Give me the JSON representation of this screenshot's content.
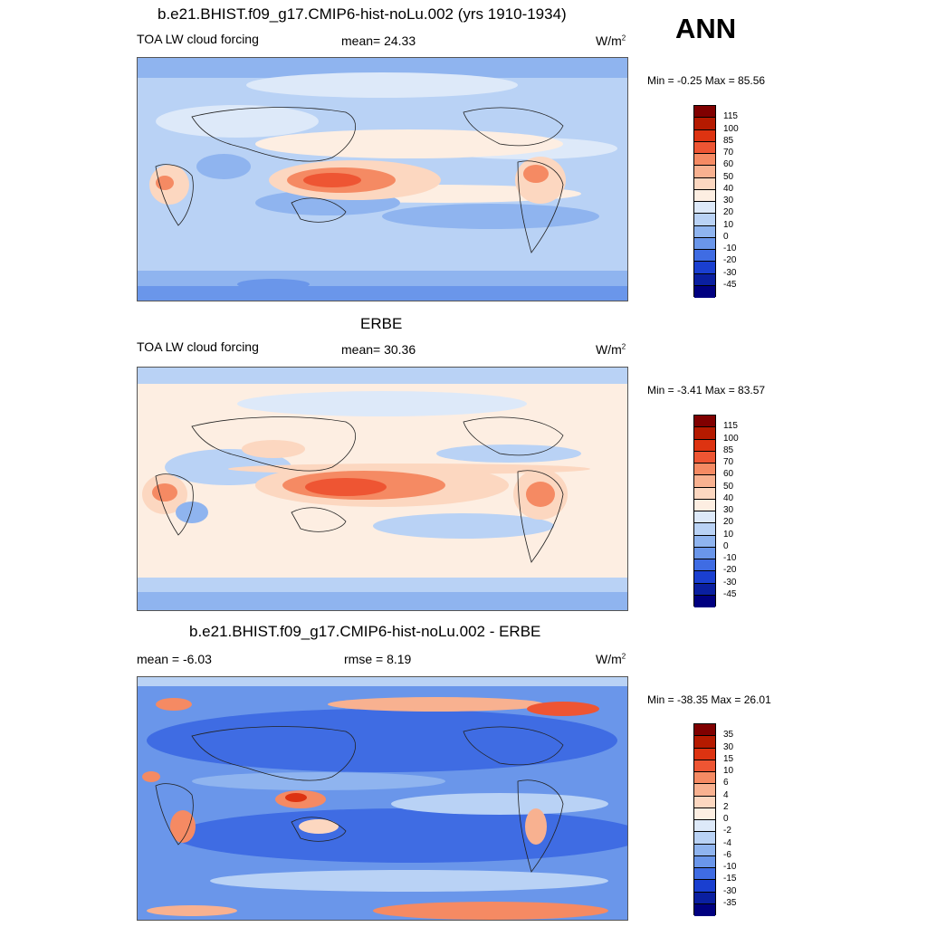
{
  "season": "ANN",
  "panels": [
    {
      "title": "b.e21.BHIST.f09_g17.CMIP6-hist-noLu.002 (yrs 1910-1934)",
      "left_label": "TOA LW cloud forcing",
      "center_label": "mean=  24.33",
      "units": "W/m",
      "units_sup": "2",
      "minmax": "Min =  -0.25 Max =  85.56",
      "colorbar": {
        "labels": [
          "115",
          "100",
          "85",
          "70",
          "60",
          "50",
          "40",
          "30",
          "20",
          "10",
          "0",
          "-10",
          "-20",
          "-30",
          "-45"
        ],
        "colors": [
          "#800000",
          "#b51a00",
          "#dd3311",
          "#ee5533",
          "#f58a63",
          "#f8b190",
          "#fcd7c0",
          "#fdeee2",
          "#dde9f9",
          "#b9d2f5",
          "#8fb4ef",
          "#6a96ea",
          "#3f6ce3",
          "#1a3fd0",
          "#0a1fa0",
          "#000080"
        ]
      }
    },
    {
      "title": "ERBE",
      "left_label": "TOA LW cloud forcing",
      "center_label": "mean=  30.36",
      "units": "W/m",
      "units_sup": "2",
      "minmax": "Min =  -3.41 Max =  83.57",
      "colorbar": {
        "labels": [
          "115",
          "100",
          "85",
          "70",
          "60",
          "50",
          "40",
          "30",
          "20",
          "10",
          "0",
          "-10",
          "-20",
          "-30",
          "-45"
        ],
        "colors": [
          "#800000",
          "#b51a00",
          "#dd3311",
          "#ee5533",
          "#f58a63",
          "#f8b190",
          "#fcd7c0",
          "#fdeee2",
          "#dde9f9",
          "#b9d2f5",
          "#8fb4ef",
          "#6a96ea",
          "#3f6ce3",
          "#1a3fd0",
          "#0a1fa0",
          "#000080"
        ]
      }
    },
    {
      "title": "b.e21.BHIST.f09_g17.CMIP6-hist-noLu.002 - ERBE",
      "left_label": "mean =  -6.03",
      "center_label": "rmse =   8.19",
      "units": "W/m",
      "units_sup": "2",
      "minmax": "Min = -38.35 Max =  26.01",
      "colorbar": {
        "labels": [
          "35",
          "30",
          "15",
          "10",
          "6",
          "4",
          "2",
          "0",
          "-2",
          "-4",
          "-6",
          "-10",
          "-15",
          "-30",
          "-35"
        ],
        "colors": [
          "#800000",
          "#b51a00",
          "#dd3311",
          "#ee5533",
          "#f58a63",
          "#f8b190",
          "#fcd7c0",
          "#fdeee2",
          "#dde9f9",
          "#b9d2f5",
          "#8fb4ef",
          "#6a96ea",
          "#3f6ce3",
          "#1a3fd0",
          "#0a1fa0",
          "#000080"
        ]
      }
    }
  ]
}
